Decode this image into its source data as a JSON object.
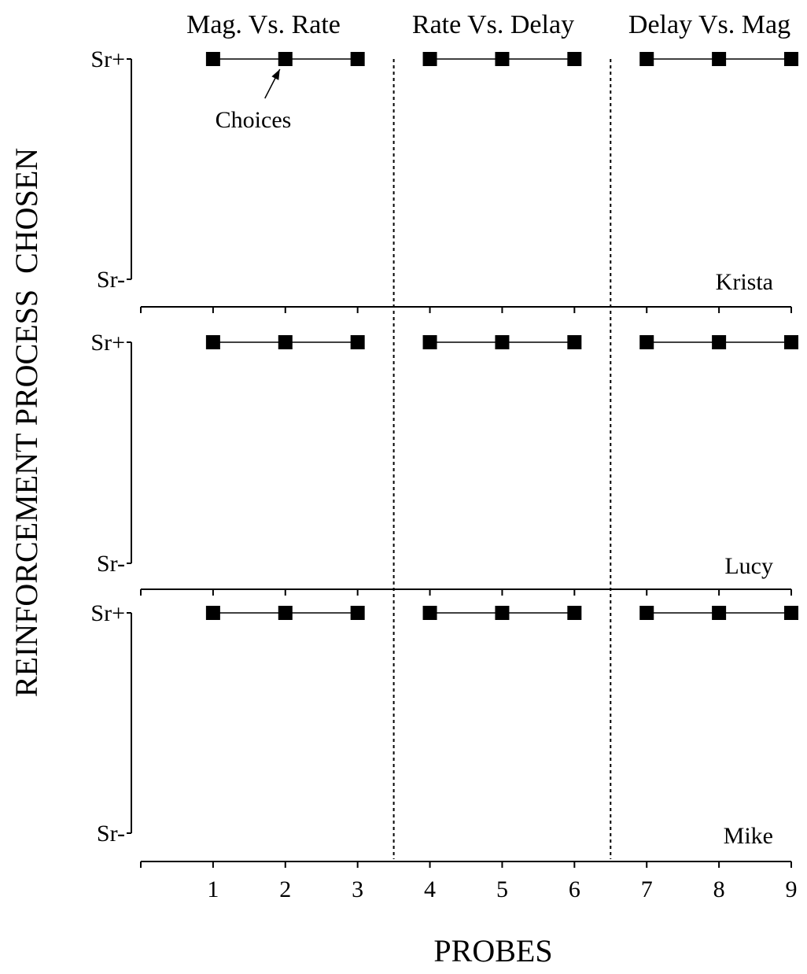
{
  "chart_data": {
    "type": "line",
    "ylabel": "REINFORCEMENT PROCESS  CHOSEN",
    "xlabel": "PROBES",
    "x_ticks": [
      "1",
      "2",
      "3",
      "4",
      "5",
      "6",
      "7",
      "8",
      "9"
    ],
    "xlim": [
      0,
      9
    ],
    "y_categories": [
      "Sr-",
      "Sr+"
    ],
    "phases": [
      {
        "label": "Mag. Vs. Rate",
        "probes": [
          1,
          2,
          3
        ]
      },
      {
        "label": "Rate Vs. Delay",
        "probes": [
          4,
          5,
          6
        ]
      },
      {
        "label": "Delay Vs. Mag",
        "probes": [
          7,
          8,
          9
        ]
      }
    ],
    "phase_change_lines": [
      3.5,
      6.5
    ],
    "annotation": {
      "text": "Choices",
      "probe": 2,
      "value": "Sr+"
    },
    "panels": [
      {
        "name": "Krista",
        "x": [
          1,
          2,
          3,
          4,
          5,
          6,
          7,
          8,
          9
        ],
        "y": [
          "Sr+",
          "Sr+",
          "Sr+",
          "Sr+",
          "Sr+",
          "Sr+",
          "Sr+",
          "Sr+",
          "Sr+"
        ]
      },
      {
        "name": "Lucy",
        "x": [
          1,
          2,
          3,
          4,
          5,
          6,
          7,
          8,
          9
        ],
        "y": [
          "Sr+",
          "Sr+",
          "Sr+",
          "Sr+",
          "Sr+",
          "Sr+",
          "Sr+",
          "Sr+",
          "Sr+"
        ]
      },
      {
        "name": "Mike",
        "x": [
          1,
          2,
          3,
          4,
          5,
          6,
          7,
          8,
          9
        ],
        "y": [
          "Sr+",
          "Sr+",
          "Sr+",
          "Sr+",
          "Sr+",
          "Sr+",
          "Sr+",
          "Sr+",
          "Sr+"
        ]
      }
    ]
  }
}
